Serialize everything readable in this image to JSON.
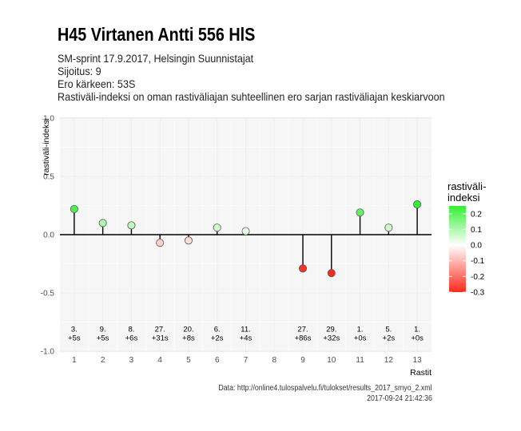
{
  "header": {
    "title": "H45 Virtanen Antti 556 HlS",
    "subtitle_lines": [
      "SM-sprint 17.9.2017, Helsingin Suunnistajat",
      "Sijoitus: 9",
      "Ero kärkeen: 53S",
      "Rastiväli-indeksi on oman rastiväliajan suhteellinen ero sarjan rastiväliajan keskiarvoon"
    ]
  },
  "caption": {
    "source": "Data: http://online4.tulospalvelu.fi/tulokset/results_2017_smyo_2.xml",
    "timestamp": "2017-09-24 21:42:36"
  },
  "chart_data": {
    "type": "lollipop",
    "xlabel": "Rastit",
    "ylabel": "rastiväli-indeksi",
    "xlim": [
      0.5,
      13.5
    ],
    "ylim": [
      -1.0,
      1.0
    ],
    "x_ticks": [
      1,
      2,
      3,
      4,
      5,
      6,
      7,
      8,
      9,
      10,
      11,
      12,
      13
    ],
    "y_ticks": [
      -1.0,
      -0.5,
      0.0,
      0.5,
      1.0
    ],
    "y_tick_labels": [
      "-1.0",
      "-0.5",
      "0.0",
      "0.5",
      "1.0"
    ],
    "grid": true,
    "points": [
      {
        "x": 1,
        "y": 0.22,
        "rank": "3.",
        "diff": "+5s"
      },
      {
        "x": 2,
        "y": 0.1,
        "rank": "9.",
        "diff": "+5s"
      },
      {
        "x": 3,
        "y": 0.08,
        "rank": "8.",
        "diff": "+6s"
      },
      {
        "x": 4,
        "y": -0.07,
        "rank": "27.",
        "diff": "+31s"
      },
      {
        "x": 5,
        "y": -0.05,
        "rank": "20.",
        "diff": "+8s"
      },
      {
        "x": 6,
        "y": 0.06,
        "rank": "6.",
        "diff": "+2s"
      },
      {
        "x": 7,
        "y": 0.03,
        "rank": "11.",
        "diff": "+4s"
      },
      {
        "x": 9,
        "y": -0.29,
        "rank": "27.",
        "diff": "+86s"
      },
      {
        "x": 10,
        "y": -0.33,
        "rank": "29.",
        "diff": "+32s"
      },
      {
        "x": 11,
        "y": 0.19,
        "rank": "1.",
        "diff": "+0s"
      },
      {
        "x": 12,
        "y": 0.06,
        "rank": "5.",
        "diff": "+2s"
      },
      {
        "x": 13,
        "y": 0.26,
        "rank": "1.",
        "diff": "+0s"
      }
    ],
    "label_y": -0.92,
    "legend": {
      "title_lines": [
        "rastiväli-",
        "indeksi"
      ],
      "placement": "right",
      "min": -0.3,
      "max": 0.25,
      "ticks": [
        0.2,
        0.1,
        0.0,
        -0.1,
        -0.2,
        -0.3
      ],
      "tick_labels": [
        "0.2",
        "0.1",
        "0.0",
        "-0.1",
        "-0.2",
        "-0.3"
      ],
      "colors": {
        "high": "#32f032",
        "mid": "#ffffff",
        "low": "#ff2a1a"
      }
    },
    "colors": {
      "panel": "#ebebeb",
      "grid": "#d9d9d9",
      "stem": "#000000",
      "axis_text": "#4d4d4d"
    }
  }
}
